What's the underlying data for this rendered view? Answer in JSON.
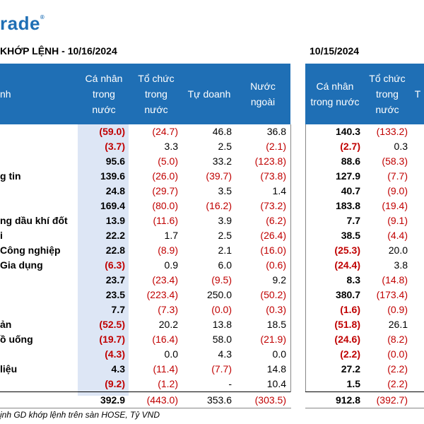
{
  "logo": {
    "text": "rade",
    "mark": "®"
  },
  "left_title": "KHỚP LỆNH - 10/16/2024",
  "right_title": "10/15/2024",
  "header_left": {
    "sector": "nh",
    "c1": "Cá nhân\ntrong\nnước",
    "c2": "Tổ chức\ntrong\nnước",
    "c3": "Tự doanh",
    "c4": "Nước\nngoài"
  },
  "header_right": {
    "c1": "Cá nhân\ntrong nước",
    "c2": "Tổ chức\ntrong\nnước",
    "c3": "T"
  },
  "rows": [
    {
      "label": "",
      "v": [
        "(59.0)",
        "(24.7)",
        "46.8",
        "36.8"
      ],
      "r": [
        "140.3",
        "(133.2)"
      ]
    },
    {
      "label": "",
      "v": [
        "(3.7)",
        "3.3",
        "2.5",
        "(2.1)"
      ],
      "r": [
        "(2.7)",
        "0.3"
      ]
    },
    {
      "label": "",
      "v": [
        "95.6",
        "(5.0)",
        "33.2",
        "(123.8)"
      ],
      "r": [
        "88.6",
        "(58.3)"
      ]
    },
    {
      "label": "g tin",
      "v": [
        "139.6",
        "(26.0)",
        "(39.7)",
        "(73.8)"
      ],
      "r": [
        "127.9",
        "(7.7)"
      ]
    },
    {
      "label": "",
      "v": [
        "24.8",
        "(29.7)",
        "3.5",
        "1.4"
      ],
      "r": [
        "40.7",
        "(9.0)"
      ]
    },
    {
      "label": "",
      "v": [
        "169.4",
        "(80.0)",
        "(16.2)",
        "(73.2)"
      ],
      "r": [
        "183.8",
        "(19.4)"
      ]
    },
    {
      "label": "ng dầu khí đốt",
      "v": [
        "13.9",
        "(11.6)",
        "3.9",
        "(6.2)"
      ],
      "r": [
        "7.7",
        "(9.1)"
      ]
    },
    {
      "label": "i",
      "v": [
        "22.2",
        "1.7",
        "2.5",
        "(26.4)"
      ],
      "r": [
        "38.5",
        "(4.4)"
      ]
    },
    {
      "label": "Công nghiệp",
      "v": [
        "22.8",
        "(8.9)",
        "2.1",
        "(16.0)"
      ],
      "r": [
        "(25.3)",
        "20.0"
      ]
    },
    {
      "label": "Gia dụng",
      "v": [
        "(6.3)",
        "0.9",
        "6.0",
        "(0.6)"
      ],
      "r": [
        "(24.4)",
        "3.8"
      ]
    },
    {
      "label": "",
      "v": [
        "23.7",
        "(23.4)",
        "(9.5)",
        "9.2"
      ],
      "r": [
        "8.3",
        "(14.8)"
      ]
    },
    {
      "label": "",
      "v": [
        "23.5",
        "(223.4)",
        "250.0",
        "(50.2)"
      ],
      "r": [
        "380.7",
        "(173.4)"
      ]
    },
    {
      "label": "",
      "v": [
        "7.7",
        "(7.3)",
        "(0.0)",
        "(0.3)"
      ],
      "r": [
        "(1.6)",
        "(0.9)"
      ]
    },
    {
      "label": "ản",
      "v": [
        "(52.5)",
        "20.2",
        "13.8",
        "18.5"
      ],
      "r": [
        "(51.8)",
        "26.1"
      ]
    },
    {
      "label": "ồ uống",
      "v": [
        "(19.7)",
        "(16.4)",
        "58.0",
        "(21.9)"
      ],
      "r": [
        "(24.6)",
        "(8.2)"
      ]
    },
    {
      "label": "",
      "v": [
        "(4.3)",
        "0.0",
        "4.3",
        "0.0"
      ],
      "r": [
        "(2.2)",
        "(0.0)"
      ]
    },
    {
      "label": "liệu",
      "v": [
        "4.3",
        "(11.4)",
        "(7.7)",
        "14.8"
      ],
      "r": [
        "27.2",
        "(2.2)"
      ]
    },
    {
      "label": "",
      "v": [
        "(9.2)",
        "(1.2)",
        "-",
        "10.4"
      ],
      "r": [
        "1.5",
        "(2.2)"
      ]
    },
    {
      "label": "",
      "v": [
        "392.9",
        "(443.0)",
        "353.6",
        "(303.5)"
      ],
      "r": [
        "912.8",
        "(392.7)"
      ]
    }
  ],
  "note": "ịnh GD khớp lệnh trên sàn HOSE, Tỷ VND"
}
